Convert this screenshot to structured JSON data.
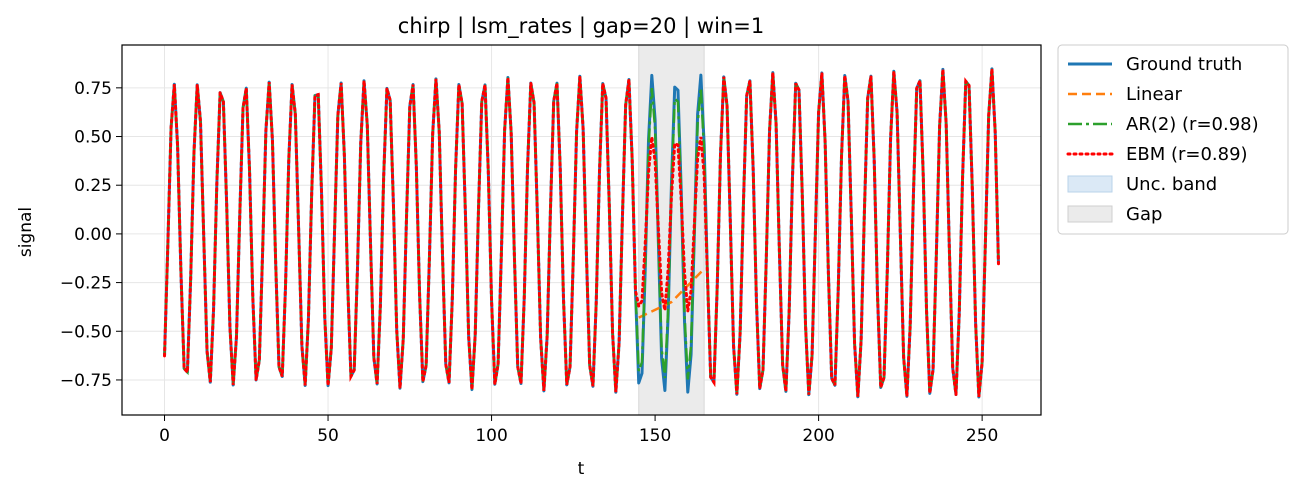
{
  "chart_data": {
    "type": "line",
    "title": "chirp | lsm_rates | gap=20 | win=1",
    "xlabel": "t",
    "ylabel": "signal",
    "xlim": [
      -13,
      268
    ],
    "ylim": [
      -0.93,
      0.97
    ],
    "xticks": [
      0,
      50,
      100,
      150,
      200,
      250
    ],
    "xtick_labels": [
      "0",
      "50",
      "100",
      "150",
      "200",
      "250"
    ],
    "yticks": [
      -0.75,
      -0.5,
      -0.25,
      0.0,
      0.25,
      0.5,
      0.75
    ],
    "ytick_labels": [
      "−0.75",
      "−0.50",
      "−0.25",
      "0.00",
      "0.25",
      "0.50",
      "0.75"
    ],
    "grid": true,
    "legend_position": "outside-right-top",
    "gap": {
      "start": 145,
      "end": 165,
      "label": "Gap",
      "color": "#ebebeb"
    },
    "signal": {
      "samples": 256,
      "t_start": 0,
      "t_end": 255,
      "amplitude_start": 0.77,
      "amplitude_end": 0.85,
      "phase_start": -0.95,
      "cycles_start": 0.138,
      "cycles_end": 0.134
    },
    "series": [
      {
        "name": "Ground truth",
        "color": "#1f77b4",
        "style": "solid"
      },
      {
        "name": "Linear",
        "color": "#ff7f0e",
        "style": "dashed",
        "values": [
          {
            "x": 145,
            "y": -0.43
          },
          {
            "x": 155,
            "y": -0.35
          },
          {
            "x": 165,
            "y": -0.18
          }
        ]
      },
      {
        "name": "AR(2) (r=0.98)",
        "color": "#2ca02c",
        "style": "dashdot"
      },
      {
        "name": "EBM (r=0.89)",
        "color": "#ff0000",
        "style": "dotted"
      }
    ],
    "legend_extra": [
      {
        "name": "Unc. band",
        "color": "#dbe9f6"
      },
      {
        "name": "Gap",
        "color": "#ebebeb"
      }
    ]
  }
}
